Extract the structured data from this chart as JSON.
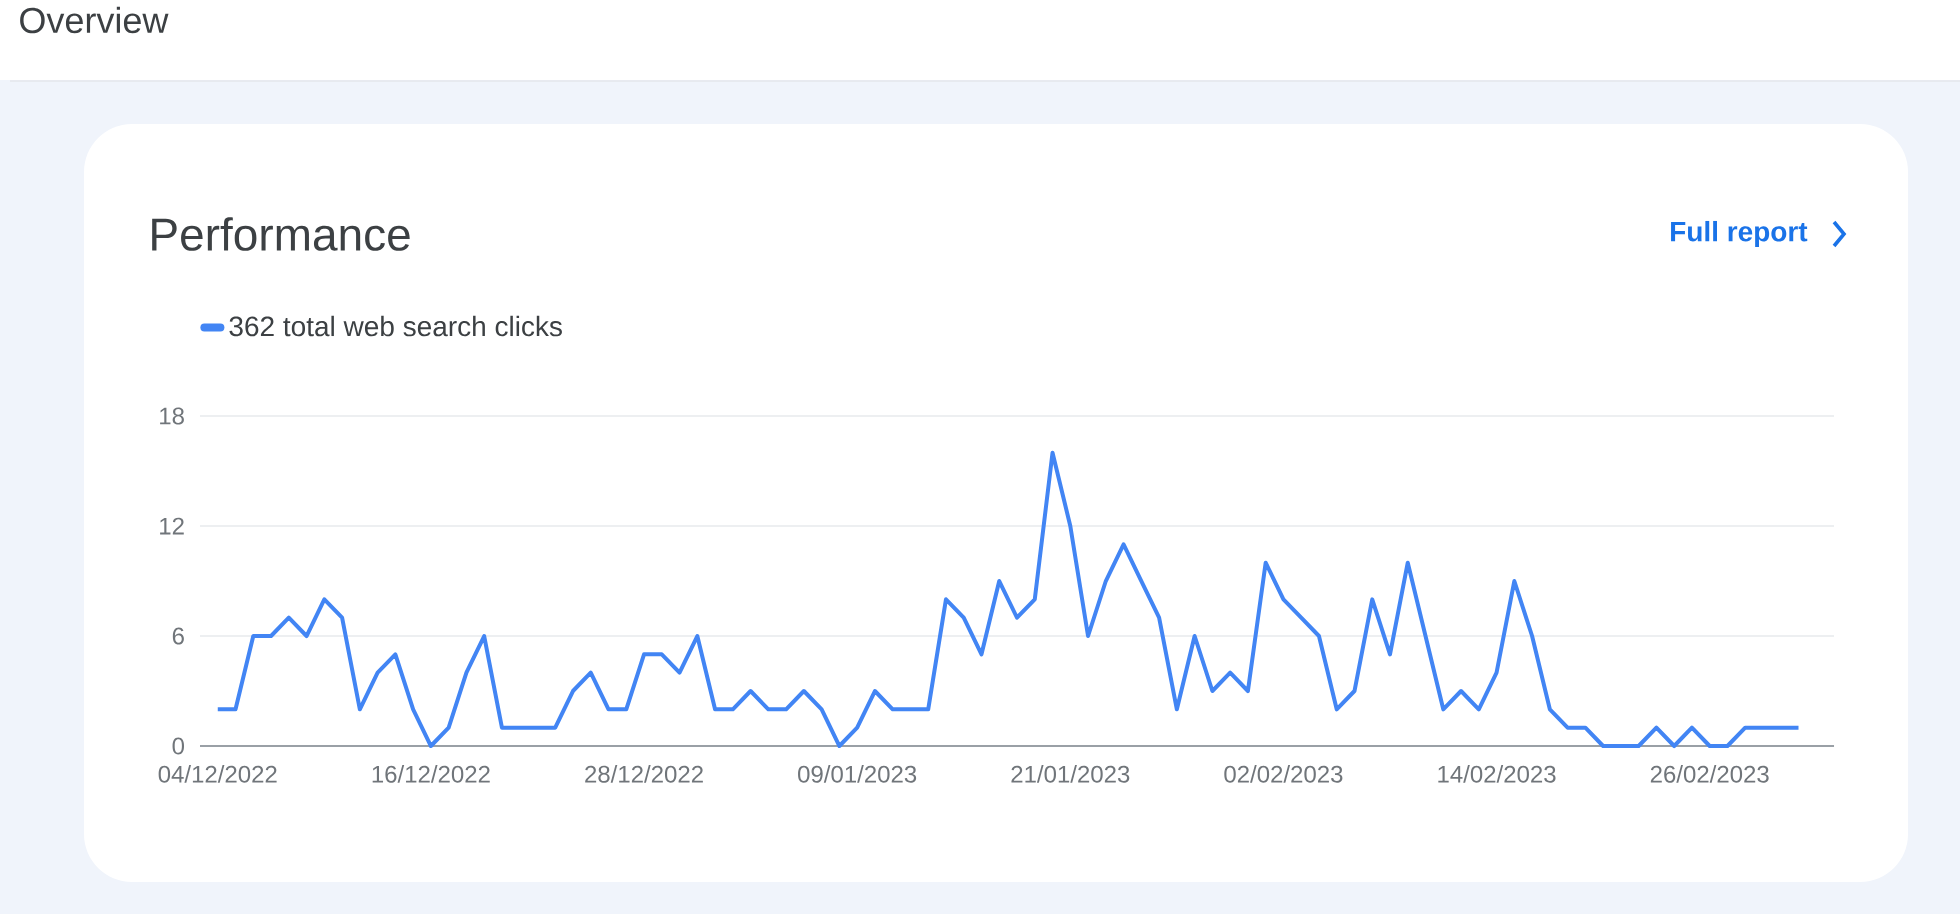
{
  "chart_data": {
    "type": "line",
    "title": "Performance",
    "annotations": [
      "Overview",
      "Full report"
    ],
    "x": [
      "2022-12-04",
      "2022-12-05",
      "2022-12-06",
      "2022-12-07",
      "2022-12-08",
      "2022-12-09",
      "2022-12-10",
      "2022-12-11",
      "2022-12-12",
      "2022-12-13",
      "2022-12-14",
      "2022-12-15",
      "2022-12-16",
      "2022-12-17",
      "2022-12-18",
      "2022-12-19",
      "2022-12-20",
      "2022-12-21",
      "2022-12-22",
      "2022-12-23",
      "2022-12-24",
      "2022-12-25",
      "2022-12-26",
      "2022-12-27",
      "2022-12-28",
      "2022-12-29",
      "2022-12-30",
      "2022-12-31",
      "2023-01-01",
      "2023-01-02",
      "2023-01-03",
      "2023-01-04",
      "2023-01-05",
      "2023-01-06",
      "2023-01-07",
      "2023-01-08",
      "2023-01-09",
      "2023-01-10",
      "2023-01-11",
      "2023-01-12",
      "2023-01-13",
      "2023-01-14",
      "2023-01-15",
      "2023-01-16",
      "2023-01-17",
      "2023-01-18",
      "2023-01-19",
      "2023-01-20",
      "2023-01-21",
      "2023-01-22",
      "2023-01-23",
      "2023-01-24",
      "2023-01-25",
      "2023-01-26",
      "2023-01-27",
      "2023-01-28",
      "2023-01-29",
      "2023-01-30",
      "2023-01-31",
      "2023-02-01",
      "2023-02-02",
      "2023-02-03",
      "2023-02-04",
      "2023-02-05",
      "2023-02-06",
      "2023-02-07",
      "2023-02-08",
      "2023-02-09",
      "2023-02-10",
      "2023-02-11",
      "2023-02-12",
      "2023-02-13",
      "2023-02-14",
      "2023-02-15",
      "2023-02-16",
      "2023-02-17",
      "2023-02-18",
      "2023-02-19",
      "2023-02-20",
      "2023-02-21",
      "2023-02-22",
      "2023-02-23",
      "2023-02-24",
      "2023-02-25",
      "2023-02-26",
      "2023-02-27",
      "2023-02-28",
      "2023-03-01",
      "2023-03-02",
      "2023-03-03"
    ],
    "series": [
      {
        "name": "362 total web search clicks",
        "color": "#4285f4",
        "values": [
          2,
          2,
          6,
          6,
          7,
          6,
          8,
          7,
          2,
          4,
          5,
          2,
          0,
          1,
          4,
          6,
          1,
          1,
          1,
          1,
          3,
          4,
          2,
          2,
          5,
          5,
          4,
          6,
          2,
          2,
          3,
          2,
          2,
          3,
          2,
          0,
          1,
          3,
          2,
          2,
          2,
          8,
          7,
          5,
          9,
          7,
          8,
          16,
          12,
          6,
          9,
          11,
          9,
          7,
          2,
          6,
          3,
          4,
          3,
          10,
          8,
          7,
          6,
          2,
          3,
          8,
          5,
          10,
          6,
          2,
          3,
          2,
          4,
          9,
          6,
          2,
          1,
          1,
          0,
          0,
          0,
          1,
          0,
          1,
          0,
          0,
          1,
          1,
          1,
          1
        ]
      }
    ],
    "xlim": [
      "2022-12-03",
      "2023-03-05"
    ],
    "xticks": [
      {
        "value": "2022-12-04",
        "label": "04/12/2022"
      },
      {
        "value": "2022-12-16",
        "label": "16/12/2022"
      },
      {
        "value": "2022-12-28",
        "label": "28/12/2022"
      },
      {
        "value": "2023-01-09",
        "label": "09/01/2023"
      },
      {
        "value": "2023-01-21",
        "label": "21/01/2023"
      },
      {
        "value": "2023-02-02",
        "label": "02/02/2023"
      },
      {
        "value": "2023-02-14",
        "label": "14/02/2023"
      },
      {
        "value": "2023-02-26",
        "label": "26/02/2023"
      }
    ],
    "ylim": [
      0,
      18
    ],
    "yticks": [
      0,
      6,
      12,
      18
    ],
    "grid": "y",
    "legend": "top left",
    "marker": "none",
    "line_style": "solid"
  }
}
